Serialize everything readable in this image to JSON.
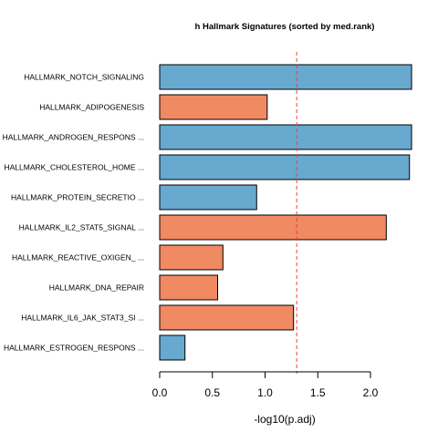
{
  "chart_data": {
    "type": "bar",
    "orientation": "horizontal",
    "title": "h Hallmark Signatures (sorted by med.rank)",
    "xlabel": "-log10(p.adj)",
    "ylabel": "",
    "xlim": [
      0,
      2.4
    ],
    "x_ticks": [
      0.0,
      0.5,
      1.0,
      1.5,
      2.0
    ],
    "x_tick_labels": [
      "0.0",
      "0.5",
      "1.0",
      "1.5",
      "2.0"
    ],
    "threshold_line": 1.3,
    "threshold_color": "#e8423c",
    "grid": false,
    "legend": "none",
    "colors": {
      "blue": "#67a9cf",
      "orange": "#ef8a62"
    },
    "bars": [
      {
        "label": "HALLMARK_NOTCH_SIGNALING",
        "value": 2.39,
        "color": "blue"
      },
      {
        "label": "HALLMARK_ADIPOGENESIS",
        "value": 1.02,
        "color": "orange"
      },
      {
        "label": "HALLMARK_ANDROGEN_RESPONS ...",
        "value": 2.39,
        "color": "blue"
      },
      {
        "label": "HALLMARK_CHOLESTEROL_HOME ...",
        "value": 2.37,
        "color": "blue"
      },
      {
        "label": "HALLMARK_PROTEIN_SECRETIO ...",
        "value": 0.92,
        "color": "blue"
      },
      {
        "label": "HALLMARK_IL2_STAT5_SIGNAL ...",
        "value": 2.15,
        "color": "orange"
      },
      {
        "label": "HALLMARK_REACTIVE_OXIGEN_ ...",
        "value": 0.6,
        "color": "orange"
      },
      {
        "label": "HALLMARK_DNA_REPAIR",
        "value": 0.55,
        "color": "orange"
      },
      {
        "label": "HALLMARK_IL6_JAK_STAT3_SI ...",
        "value": 1.27,
        "color": "orange"
      },
      {
        "label": "HALLMARK_ESTROGEN_RESPONS ...",
        "value": 0.24,
        "color": "blue"
      }
    ]
  }
}
